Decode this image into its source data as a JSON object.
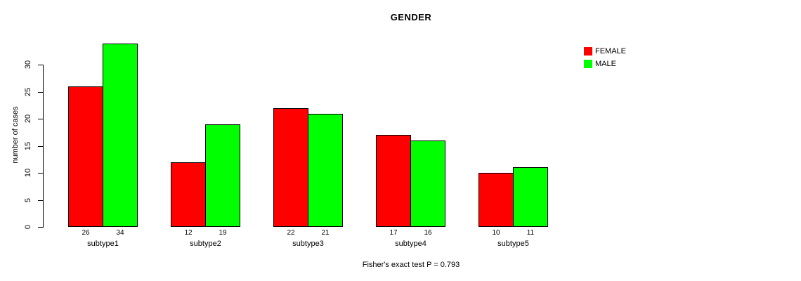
{
  "title": "GENDER",
  "caption": "Fisher's exact test P = 0.793",
  "y_axis": {
    "label": "number of cases",
    "ticks": [
      0,
      5,
      10,
      15,
      20,
      25,
      30
    ]
  },
  "legend": {
    "position": "top-right",
    "items": [
      {
        "label": "FEMALE",
        "color": "#ff0000"
      },
      {
        "label": "MALE",
        "color": "#00ff00"
      }
    ]
  },
  "chart_data": {
    "type": "bar",
    "title": "GENDER",
    "xlabel": "",
    "ylabel": "number of cases",
    "categories": [
      "subtype1",
      "subtype2",
      "subtype3",
      "subtype4",
      "subtype5"
    ],
    "series": [
      {
        "name": "FEMALE",
        "color": "#ff0000",
        "values": [
          26,
          12,
          22,
          17,
          10
        ]
      },
      {
        "name": "MALE",
        "color": "#00ff00",
        "values": [
          34,
          19,
          21,
          16,
          11
        ]
      }
    ],
    "ylim": [
      0,
      34
    ],
    "yticks": [
      0,
      5,
      10,
      15,
      20,
      25,
      30
    ],
    "grid": false,
    "bar_border_color": "#000000",
    "values_shown_below_bars": true,
    "annotation": "Fisher's exact test P = 0.793",
    "legend_position": "top-right"
  }
}
